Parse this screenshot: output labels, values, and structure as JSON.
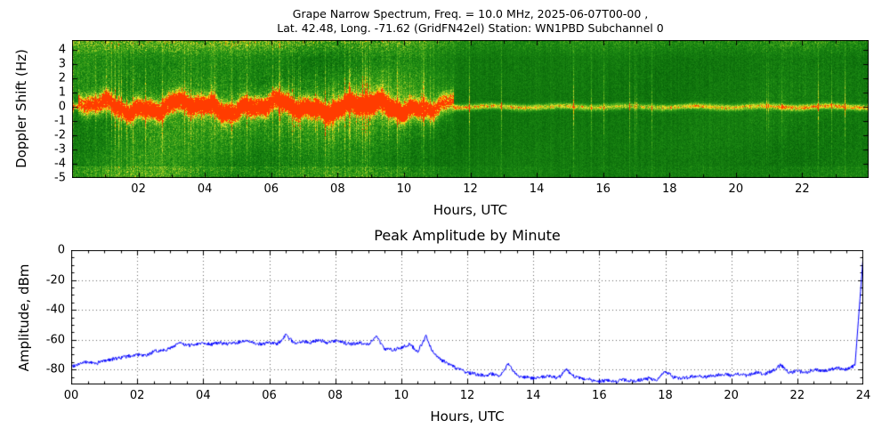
{
  "chart_data": [
    {
      "type": "heatmap",
      "name": "doppler-spectrogram",
      "title_line1": "Grape Narrow Spectrum, Freq. = 10.0 MHz, 2025-06-07T00-00 ,",
      "title_line2": "Lat.  42.48, Long. -71.62 (GridFN42el) Station: WN1PBD Subchannel 0",
      "xlabel": "Hours, UTC",
      "ylabel": "Doppler Shift (Hz)",
      "xlim": [
        0,
        24
      ],
      "ylim": [
        -5,
        4.7
      ],
      "xticks": [
        {
          "v": 2,
          "label": "02"
        },
        {
          "v": 4,
          "label": "04"
        },
        {
          "v": 6,
          "label": "06"
        },
        {
          "v": 8,
          "label": "08"
        },
        {
          "v": 10,
          "label": "10"
        },
        {
          "v": 12,
          "label": "12"
        },
        {
          "v": 14,
          "label": "14"
        },
        {
          "v": 16,
          "label": "16"
        },
        {
          "v": 18,
          "label": "18"
        },
        {
          "v": 20,
          "label": "20"
        },
        {
          "v": 22,
          "label": "22"
        }
      ],
      "yticks": [
        {
          "v": 4,
          "label": "4"
        },
        {
          "v": 3,
          "label": "3"
        },
        {
          "v": 2,
          "label": "2"
        },
        {
          "v": 1,
          "label": "1"
        },
        {
          "v": 0,
          "label": "0"
        },
        {
          "v": -1,
          "label": "-1"
        },
        {
          "v": -2,
          "label": "-2"
        },
        {
          "v": -3,
          "label": "-3"
        },
        {
          "v": -4,
          "label": "-4"
        },
        {
          "v": -5,
          "label": "-5"
        }
      ],
      "band_center_hz": 0,
      "band_intensity_by_hour": [
        0.55,
        0.85,
        0.95,
        0.92,
        0.9,
        0.88,
        0.92,
        0.95,
        0.9,
        0.95,
        0.88,
        0.7,
        0.5,
        0.48,
        0.45,
        0.44,
        0.42,
        0.42,
        0.45,
        0.46,
        0.42,
        0.46,
        0.5,
        0.52,
        0.48
      ],
      "background_activity_by_hour": [
        0.85,
        0.9,
        0.95,
        0.9,
        0.85,
        0.9,
        0.95,
        1.0,
        0.95,
        1.0,
        0.9,
        0.6,
        0.3,
        0.28,
        0.28,
        0.26,
        0.26,
        0.28,
        0.3,
        0.32,
        0.3,
        0.45,
        0.55,
        0.5,
        0.4
      ],
      "colormap": [
        {
          "v": 0.0,
          "c": "#003d00"
        },
        {
          "v": 0.3,
          "c": "#0b6b0b"
        },
        {
          "v": 0.5,
          "c": "#1e8c14"
        },
        {
          "v": 0.65,
          "c": "#4fae1e"
        },
        {
          "v": 0.78,
          "c": "#a8cc28"
        },
        {
          "v": 0.86,
          "c": "#e8e23c"
        },
        {
          "v": 0.92,
          "c": "#ffd700"
        },
        {
          "v": 0.96,
          "c": "#ff9000"
        },
        {
          "v": 1.0,
          "c": "#ff3c00"
        }
      ]
    },
    {
      "type": "line",
      "name": "peak-amplitude-by-minute",
      "title": "Peak Amplitude by Minute",
      "xlabel": "Hours, UTC",
      "ylabel": "Amplitude, dBm",
      "xlim": [
        0,
        24
      ],
      "ylim": [
        -90,
        0
      ],
      "line_color": "#0000ff",
      "grid": {
        "style": "dotted",
        "color": "#000000"
      },
      "xticks": [
        {
          "v": 0,
          "label": "00"
        },
        {
          "v": 2,
          "label": "02"
        },
        {
          "v": 4,
          "label": "04"
        },
        {
          "v": 6,
          "label": "06"
        },
        {
          "v": 8,
          "label": "08"
        },
        {
          "v": 10,
          "label": "10"
        },
        {
          "v": 12,
          "label": "12"
        },
        {
          "v": 14,
          "label": "14"
        },
        {
          "v": 16,
          "label": "16"
        },
        {
          "v": 18,
          "label": "18"
        },
        {
          "v": 20,
          "label": "20"
        },
        {
          "v": 22,
          "label": "22"
        },
        {
          "v": 24,
          "label": "24"
        }
      ],
      "yticks": [
        {
          "v": 0,
          "label": "0"
        },
        {
          "v": -20,
          "label": "-20"
        },
        {
          "v": -40,
          "label": "-40"
        },
        {
          "v": -60,
          "label": "-60"
        },
        {
          "v": -80,
          "label": "-80"
        }
      ],
      "x_start": 0,
      "x_step": 0.25,
      "y": [
        -78,
        -76,
        -75,
        -76,
        -74,
        -73,
        -72,
        -71,
        -70,
        -71,
        -68,
        -67,
        -66,
        -62,
        -64,
        -63,
        -62,
        -63,
        -62,
        -63,
        -62,
        -61,
        -62,
        -63,
        -62,
        -63,
        -57,
        -62,
        -61,
        -62,
        -60,
        -62,
        -61,
        -62,
        -63,
        -62,
        -63,
        -58,
        -66,
        -67,
        -65,
        -63,
        -68,
        -58,
        -70,
        -74,
        -77,
        -80,
        -82,
        -83,
        -84,
        -83,
        -84,
        -76,
        -84,
        -85,
        -86,
        -85,
        -84,
        -86,
        -80,
        -85,
        -86,
        -87,
        -88,
        -87,
        -88,
        -87,
        -88,
        -87,
        -86,
        -87,
        -81,
        -85,
        -86,
        -85,
        -84,
        -85,
        -84,
        -83,
        -84,
        -83,
        -84,
        -82,
        -83,
        -81,
        -77,
        -82,
        -81,
        -82,
        -80,
        -81,
        -80,
        -79,
        -80,
        -77,
        -3
      ]
    }
  ]
}
